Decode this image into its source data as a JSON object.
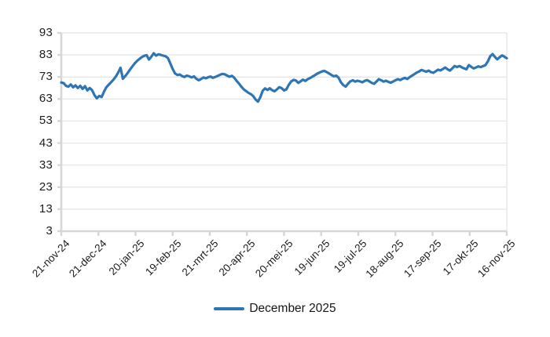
{
  "chart": {
    "legend": {
      "label": "December 2025"
    },
    "accent_color": "#2E75B6",
    "gridline_color": "#e3e3e3",
    "axis_color": "#d6d6d6",
    "text_color": "#1c1c1c"
  },
  "chart_data": {
    "type": "line",
    "title": "",
    "xlabel": "",
    "ylabel": "",
    "ylim": [
      3,
      93
    ],
    "y_ticks": [
      3,
      13,
      23,
      33,
      43,
      53,
      63,
      73,
      83,
      93
    ],
    "grid": true,
    "legend_position": "bottom",
    "categories": [
      "21-nov-24",
      "21-dec-24",
      "20-jan-25",
      "19-feb-25",
      "21-mrt-25",
      "20-apr-25",
      "20-mei-25",
      "19-jun-25",
      "19-jul-25",
      "18-aug-25",
      "17-sep-25",
      "17-okt-25",
      "16-nov-25"
    ],
    "series": [
      {
        "name": "December 2025",
        "color": "#2E75B6",
        "values": [
          70.5,
          70.2,
          69.0,
          68.6,
          69.6,
          68.3,
          69.2,
          68.0,
          69.0,
          67.6,
          68.8,
          66.9,
          68.0,
          67.0,
          64.8,
          63.3,
          64.4,
          63.9,
          66.3,
          68.3,
          69.5,
          70.6,
          71.8,
          73.2,
          75.0,
          77.2,
          72.2,
          73.4,
          74.8,
          76.4,
          77.8,
          79.2,
          80.3,
          81.2,
          82.0,
          82.6,
          82.9,
          80.9,
          82.2,
          83.8,
          82.7,
          83.3,
          83.0,
          82.7,
          82.4,
          81.6,
          79.2,
          76.6,
          74.6,
          73.9,
          74.1,
          73.4,
          73.0,
          73.6,
          73.3,
          72.8,
          73.3,
          72.2,
          71.5,
          72.1,
          72.8,
          72.4,
          72.9,
          73.2,
          72.6,
          73.0,
          73.5,
          74.0,
          74.4,
          74.2,
          73.6,
          73.1,
          73.5,
          72.6,
          71.2,
          70.0,
          68.6,
          67.4,
          66.6,
          65.8,
          65.2,
          64.3,
          62.8,
          61.8,
          63.8,
          66.8,
          67.8,
          67.1,
          67.9,
          67.0,
          66.5,
          67.4,
          68.4,
          67.9,
          66.9,
          67.4,
          69.4,
          70.9,
          71.7,
          71.4,
          70.3,
          71.0,
          71.8,
          71.2,
          72.0,
          72.5,
          73.2,
          73.8,
          74.5,
          75.0,
          75.5,
          75.8,
          75.2,
          74.6,
          73.9,
          73.3,
          73.6,
          72.7,
          70.6,
          69.3,
          68.6,
          69.9,
          71.0,
          71.5,
          70.9,
          71.3,
          71.0,
          70.6,
          71.2,
          71.6,
          71.0,
          70.3,
          69.9,
          70.9,
          72.0,
          71.5,
          70.9,
          71.3,
          70.8,
          70.4,
          70.9,
          71.5,
          72.0,
          71.6,
          72.2,
          72.6,
          72.1,
          72.9,
          73.6,
          74.3,
          75.0,
          75.5,
          76.2,
          75.8,
          75.4,
          75.9,
          75.2,
          74.9,
          75.6,
          76.3,
          76.0,
          76.6,
          77.3,
          76.5,
          75.9,
          76.9,
          78.0,
          77.5,
          78.0,
          77.4,
          76.9,
          76.5,
          78.4,
          77.6,
          76.9,
          77.3,
          77.8,
          77.5,
          77.9,
          78.4,
          80.1,
          82.4,
          83.4,
          82.1,
          81.0,
          82.0,
          82.8,
          82.2,
          81.5
        ]
      }
    ]
  }
}
